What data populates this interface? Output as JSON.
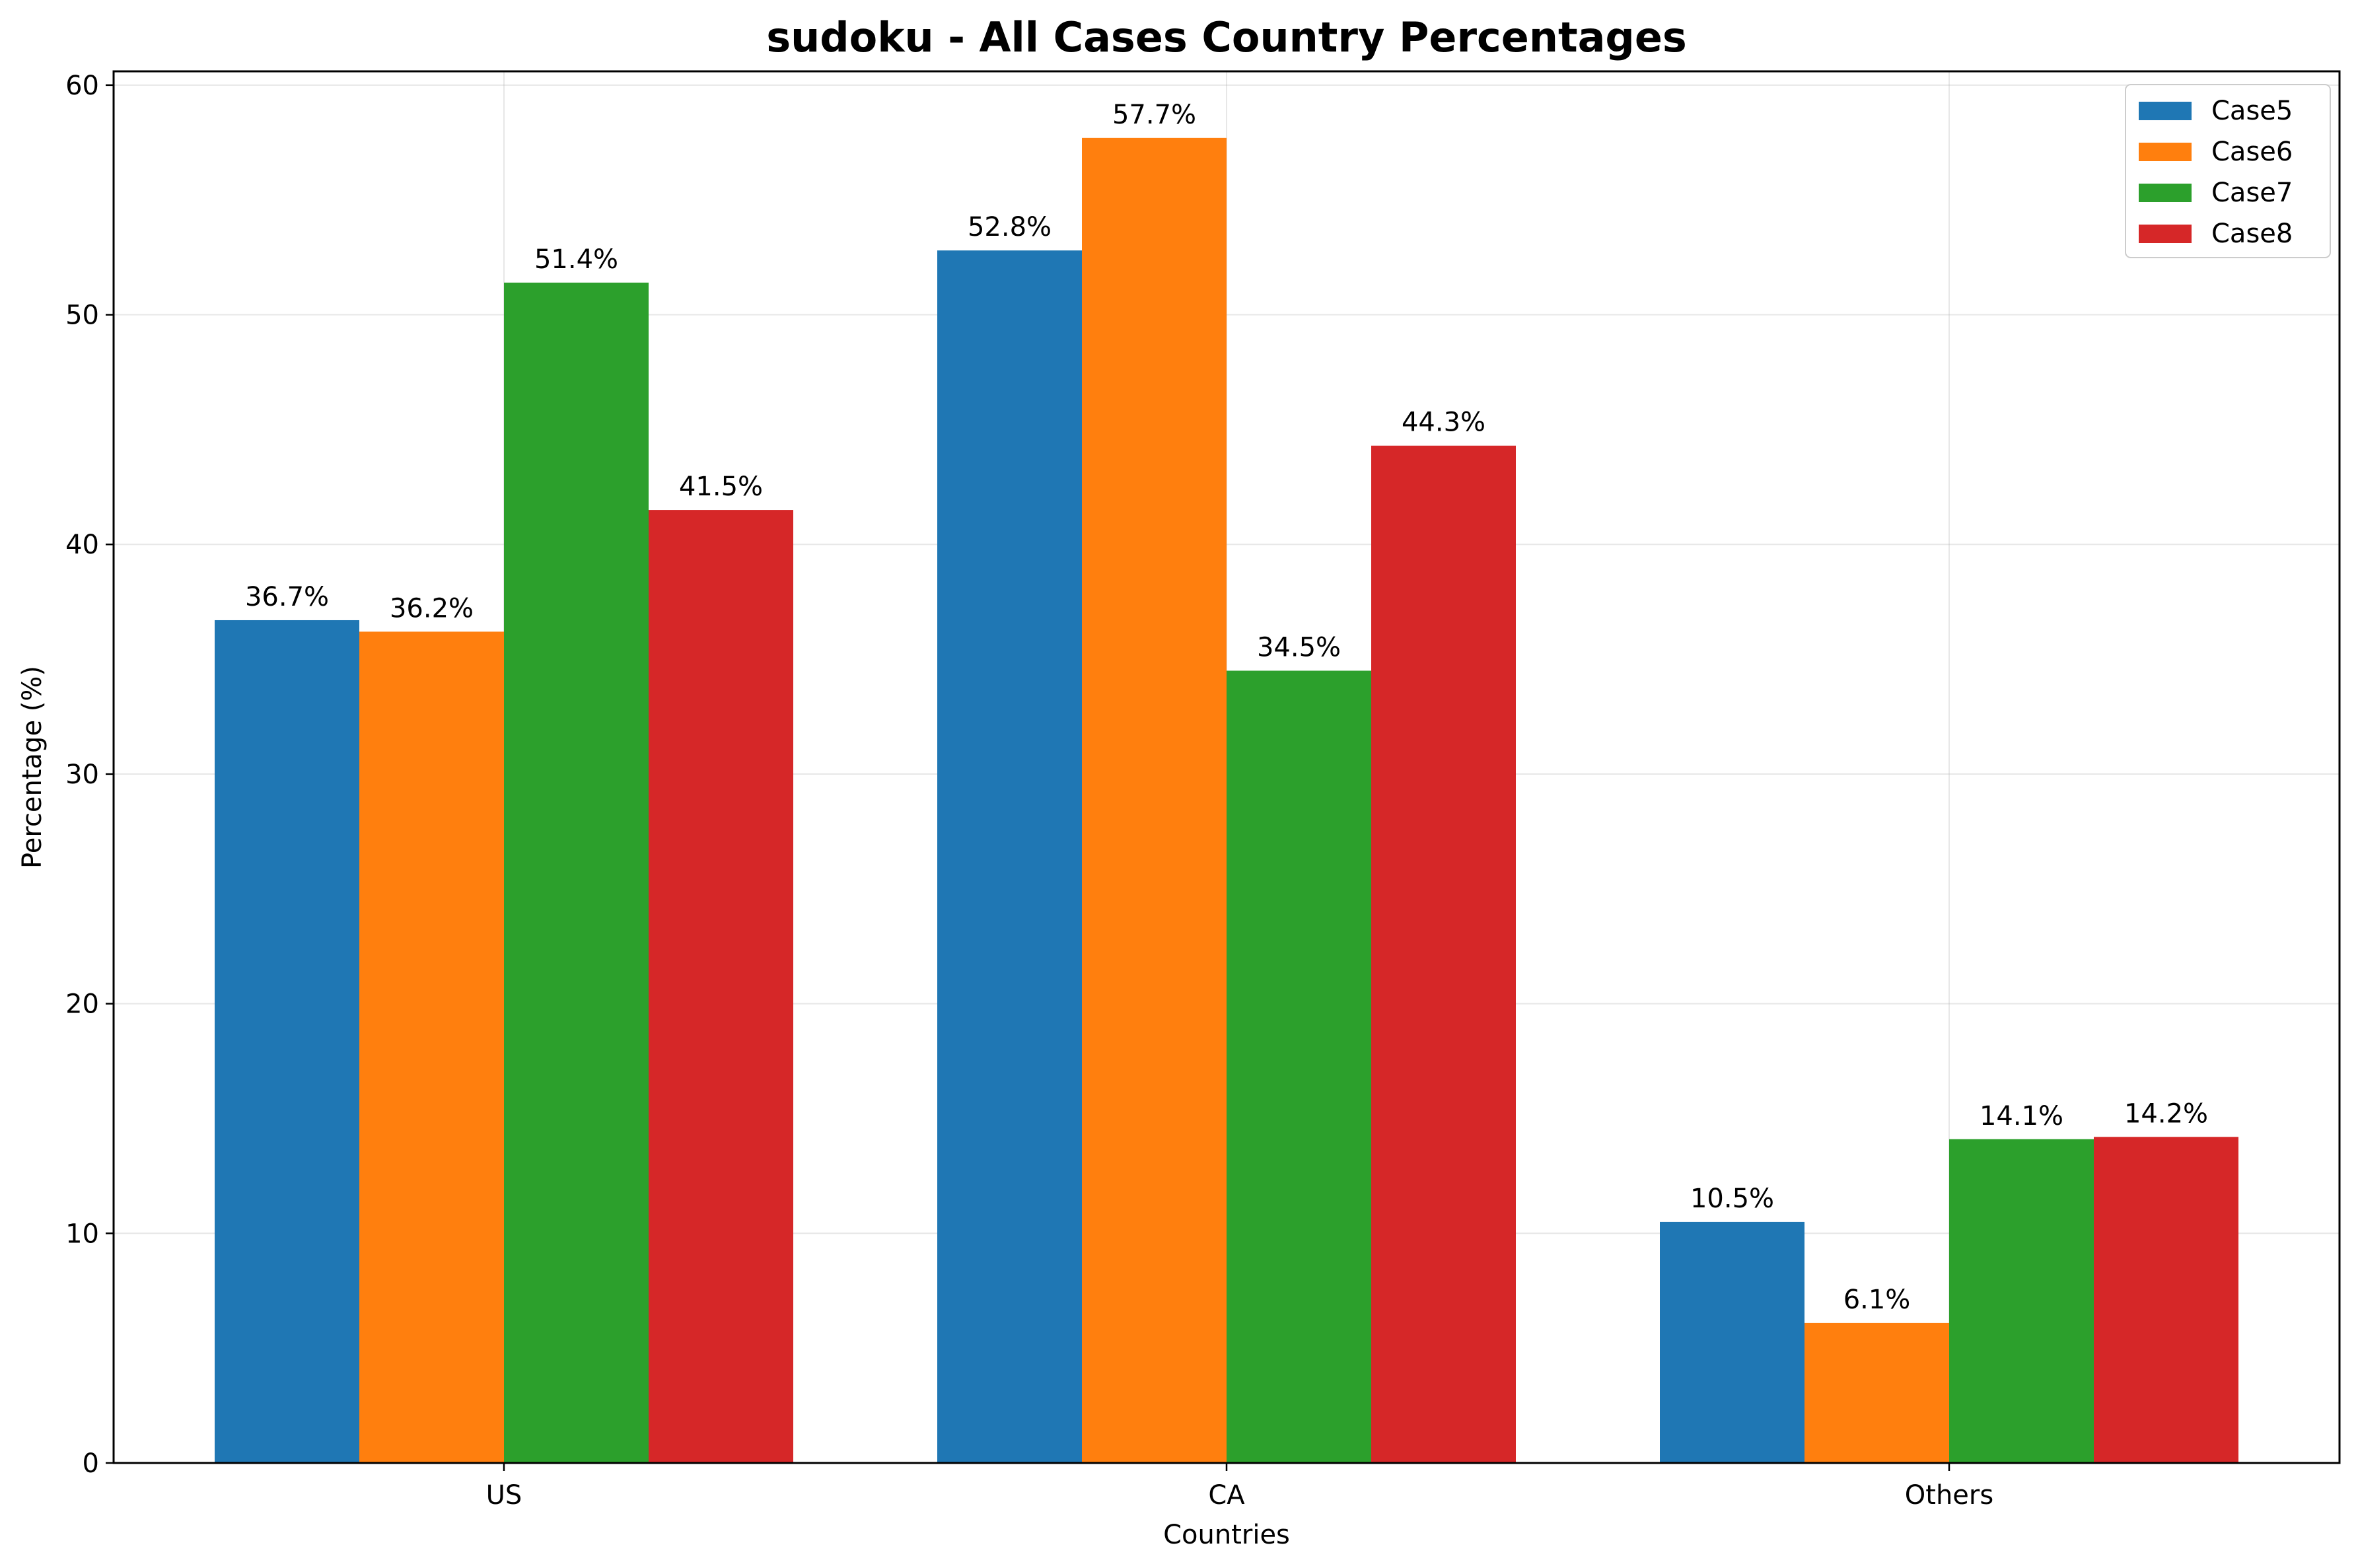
{
  "chart_data": {
    "type": "bar",
    "title": "sudoku - All Cases Country Percentages",
    "xlabel": "Countries",
    "ylabel": "Percentage (%)",
    "categories": [
      "US",
      "CA",
      "Others"
    ],
    "series": [
      {
        "name": "Case5",
        "color": "#1f77b4",
        "values": [
          36.7,
          52.8,
          10.5
        ],
        "labels": [
          "36.7%",
          "52.8%",
          "10.5%"
        ]
      },
      {
        "name": "Case6",
        "color": "#ff7f0e",
        "values": [
          36.2,
          57.7,
          6.1
        ],
        "labels": [
          "36.2%",
          "57.7%",
          "6.1%"
        ]
      },
      {
        "name": "Case7",
        "color": "#2ca02c",
        "values": [
          51.4,
          34.5,
          14.1
        ],
        "labels": [
          "51.4%",
          "34.5%",
          "14.1%"
        ]
      },
      {
        "name": "Case8",
        "color": "#d62728",
        "values": [
          41.5,
          44.3,
          14.2
        ],
        "labels": [
          "41.5%",
          "44.3%",
          "14.2%"
        ]
      }
    ],
    "ylim": [
      0,
      60.6
    ],
    "yticks": [
      0,
      10,
      20,
      30,
      40,
      50,
      60
    ],
    "ytick_labels": [
      "0",
      "10",
      "20",
      "30",
      "40",
      "50",
      "60"
    ],
    "grid": true,
    "legend_position": "top-right"
  }
}
